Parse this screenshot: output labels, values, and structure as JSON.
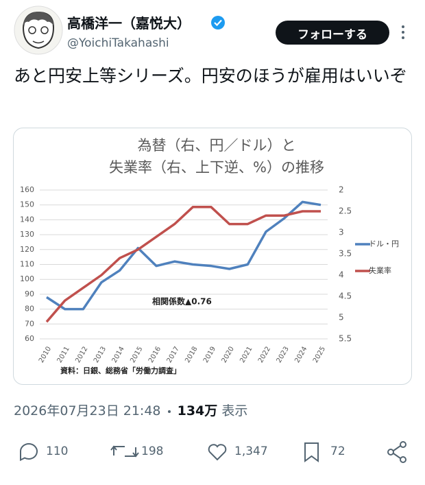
{
  "header": {
    "name": "高橋洋一（嘉悦大）",
    "handle": "@YoichiTakahashi",
    "follow": "フォローする"
  },
  "text": "あと円安上等シリーズ。円安のほうが雇用はいいぞ",
  "chart_data": {
    "type": "line",
    "title": "為替（右、円／ドル）と",
    "subtitle": "失業率（右、上下逆、%）の推移",
    "categories": [
      "2010",
      "2011",
      "2012",
      "2013",
      "2014",
      "2015",
      "2016",
      "2017",
      "2018",
      "2019",
      "2020",
      "2021",
      "2022",
      "2023",
      "2024",
      "2025"
    ],
    "series": [
      {
        "name": "ドル・円",
        "color": "#4f81bd",
        "values": [
          88,
          80,
          80,
          98,
          106,
          121,
          109,
          112,
          110,
          109,
          107,
          110,
          132,
          141,
          152,
          150
        ]
      },
      {
        "name": "失業率",
        "color": "#c0504d",
        "axis": "y2",
        "values": [
          5.1,
          4.6,
          4.3,
          4.0,
          3.6,
          3.4,
          3.1,
          2.8,
          2.4,
          2.4,
          2.8,
          2.8,
          2.6,
          2.6,
          2.5,
          2.5
        ]
      }
    ],
    "ylim": [
      60,
      160
    ],
    "yticks": [
      60,
      70,
      80,
      90,
      100,
      110,
      120,
      130,
      140,
      150,
      160
    ],
    "y2lim": [
      2,
      5.5
    ],
    "y2ticks": [
      2,
      2.5,
      3,
      3.5,
      4,
      4.5,
      5,
      5.5
    ],
    "y2_inverted": true,
    "grid": true,
    "legend": "right",
    "annotation": "相関係数▲0.76",
    "source": "資料：日銀、総務省「労働力調査」"
  },
  "meta": {
    "date": "2026年07月23日 21:48",
    "views": "134万",
    "views_label": "表示"
  },
  "actions": {
    "replies": 110,
    "reposts": 198,
    "likes": {
      "value": 1347,
      "label": "1,347"
    },
    "bookmarks": 72
  }
}
